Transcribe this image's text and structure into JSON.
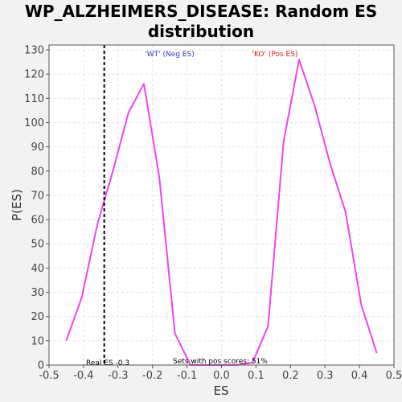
{
  "chart_data": {
    "type": "line",
    "title_line1": "WP_ALZHEIMERS_DISEASE: Random ES",
    "title_line2": "distribution",
    "xlabel": "ES",
    "ylabel": "P(ES)",
    "xlim": [
      -0.5,
      0.5
    ],
    "ylim": [
      0,
      132
    ],
    "xticks": [
      -0.5,
      -0.4,
      -0.3,
      -0.2,
      -0.1,
      0.0,
      0.1,
      0.2,
      0.3,
      0.4,
      0.5
    ],
    "xtick_labels": [
      "-0.5",
      "-0.4",
      "-0.3",
      "-0.2",
      "-0.1",
      "0.0",
      "0.1",
      "0.2",
      "0.3",
      "0.4",
      "0.5"
    ],
    "yticks": [
      0,
      10,
      20,
      30,
      40,
      50,
      60,
      70,
      80,
      90,
      100,
      110,
      120,
      130
    ],
    "grid": true,
    "series": [
      {
        "color": "#ee44ee",
        "x": [
          -0.45,
          -0.405,
          -0.36,
          -0.315,
          -0.27,
          -0.225,
          -0.18,
          -0.135,
          -0.09,
          -0.045,
          0.0,
          0.045,
          0.09,
          0.135,
          0.18,
          0.225,
          0.27,
          0.315,
          0.36,
          0.405,
          0.45
        ],
        "y": [
          10,
          28,
          58,
          80,
          104,
          116,
          77,
          13,
          0,
          0,
          0,
          0,
          1,
          16,
          92,
          126,
          107,
          83,
          63,
          25,
          5
        ]
      }
    ],
    "real_es": -0.34,
    "annotations": {
      "neg_label": "'WT' (Neg ES)",
      "pos_label": "'KO' (Pos ES)",
      "real_es_label": "Real ES -0.3",
      "pos_scores_label": "Sets with pos scores: 51%"
    },
    "colors": {
      "neg_label": "#3333cc",
      "pos_label": "#cc2222",
      "line": "#ee44ee"
    }
  }
}
